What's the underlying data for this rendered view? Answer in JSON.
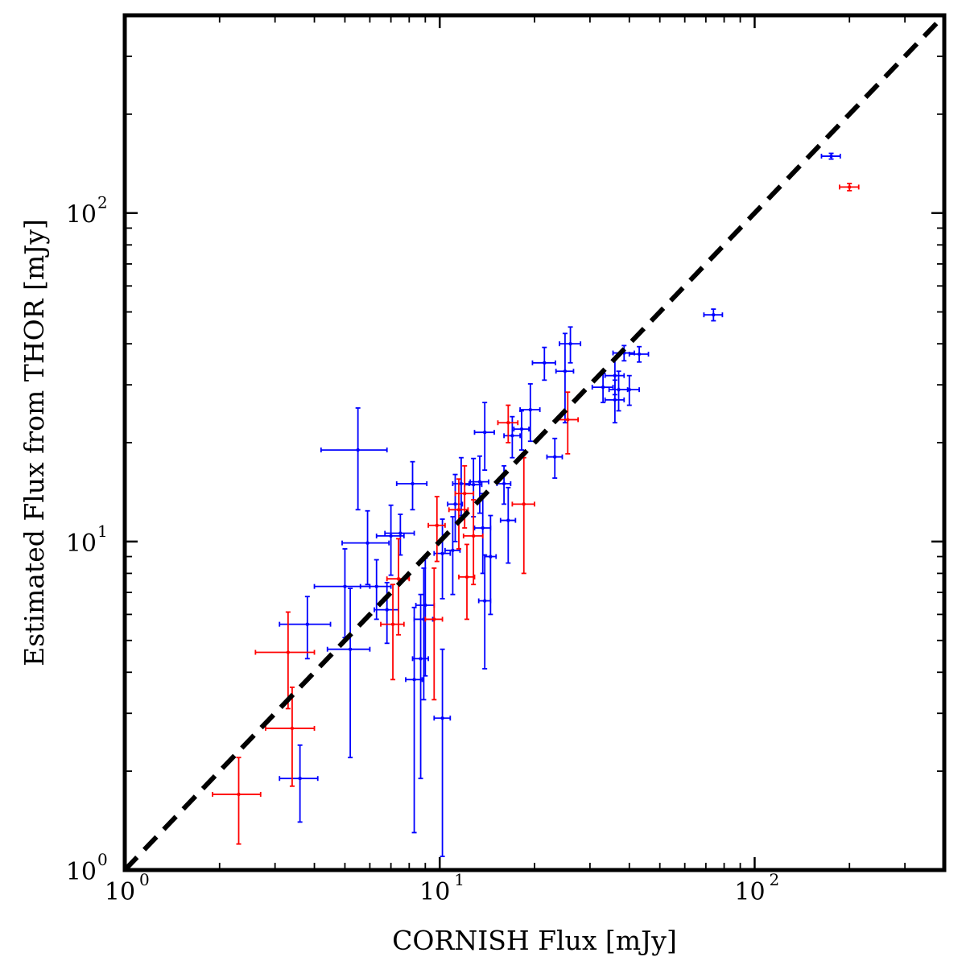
{
  "chart_data": {
    "type": "scatter",
    "title": "",
    "xlabel": "CORNISH Flux [mJy]",
    "ylabel": "Estimated Flux from THOR [mJy]",
    "xscale": "log",
    "yscale": "log",
    "xlim": [
      1,
      400
    ],
    "ylim": [
      1,
      400
    ],
    "x_ticks": [
      {
        "base": "10",
        "exp": "0",
        "value": 1
      },
      {
        "base": "10",
        "exp": "1",
        "value": 10
      },
      {
        "base": "10",
        "exp": "2",
        "value": 100
      }
    ],
    "y_ticks": [
      {
        "base": "10",
        "exp": "0",
        "value": 1
      },
      {
        "base": "10",
        "exp": "1",
        "value": 10
      },
      {
        "base": "10",
        "exp": "2",
        "value": 100
      }
    ],
    "reference_line": {
      "name": "one-to-one",
      "style": "dashed",
      "color": "#000000",
      "from": [
        1,
        1
      ],
      "to": [
        400,
        400
      ]
    },
    "series": [
      {
        "name": "blue",
        "color": "#0000ff",
        "points": [
          [
            5.5,
            19.0,
            1.3,
            6.5
          ],
          [
            8.2,
            15.0,
            0.9,
            2.5
          ],
          [
            3.8,
            5.6,
            0.7,
            1.2
          ],
          [
            3.6,
            1.9,
            0.5,
            0.5
          ],
          [
            5.0,
            7.3,
            1.0,
            2.2
          ],
          [
            5.2,
            4.7,
            0.8,
            2.5
          ],
          [
            5.9,
            9.9,
            1.0,
            2.5
          ],
          [
            6.3,
            7.3,
            0.7,
            1.5
          ],
          [
            7.0,
            10.4,
            0.7,
            2.5
          ],
          [
            6.8,
            6.2,
            0.6,
            1.3
          ],
          [
            7.5,
            10.6,
            0.8,
            1.5
          ],
          [
            8.3,
            3.8,
            0.5,
            2.5
          ],
          [
            8.9,
            5.8,
            0.6,
            2.5
          ],
          [
            8.7,
            4.4,
            0.5,
            2.5
          ],
          [
            9.0,
            6.4,
            0.6,
            2.5
          ],
          [
            10.2,
            2.9,
            0.6,
            1.8
          ],
          [
            10.2,
            9.2,
            0.6,
            2.5
          ],
          [
            11.0,
            9.4,
            0.6,
            2.5
          ],
          [
            11.2,
            13.0,
            0.6,
            3.0
          ],
          [
            11.7,
            15.0,
            0.7,
            3.0
          ],
          [
            12.8,
            14.9,
            0.8,
            3.0
          ],
          [
            13.4,
            15.2,
            0.9,
            3.0
          ],
          [
            13.7,
            11.0,
            0.8,
            3.0
          ],
          [
            13.9,
            6.6,
            0.6,
            2.5
          ],
          [
            13.9,
            21.5,
            1.0,
            5.0
          ],
          [
            14.5,
            9.0,
            0.6,
            3.0
          ],
          [
            16.5,
            11.6,
            0.9,
            3.0
          ],
          [
            17.0,
            21.0,
            1.0,
            3.0
          ],
          [
            18.2,
            22.0,
            1.0,
            3.0
          ],
          [
            19.4,
            25.2,
            1.4,
            5.0
          ],
          [
            23.2,
            18.1,
            1.3,
            2.5
          ],
          [
            21.5,
            35.0,
            1.8,
            4.0
          ],
          [
            25.0,
            33.0,
            1.6,
            10.0
          ],
          [
            26.0,
            40.0,
            2.0,
            5.0
          ],
          [
            33.0,
            29.5,
            2.5,
            3.0
          ],
          [
            36.0,
            32.0,
            2.5,
            4.0
          ],
          [
            37.0,
            29.0,
            2.5,
            4.0
          ],
          [
            38.5,
            37.5,
            3.0,
            2.0
          ],
          [
            40.0,
            29.0,
            3.0,
            3.0
          ],
          [
            43.0,
            37.2,
            3.0,
            2.0
          ],
          [
            74.0,
            49.0,
            5.0,
            2.0
          ],
          [
            175.0,
            149.0,
            12.0,
            3.0
          ],
          [
            36.0,
            27.0,
            2.5,
            4.0
          ],
          [
            16.0,
            15.0,
            0.8,
            2.0
          ]
        ]
      },
      {
        "name": "red",
        "color": "#ff0000",
        "points": [
          [
            2.3,
            1.7,
            0.4,
            0.5
          ],
          [
            3.3,
            4.6,
            0.7,
            1.5
          ],
          [
            3.4,
            2.7,
            0.6,
            0.9
          ],
          [
            7.1,
            5.6,
            0.6,
            1.8
          ],
          [
            7.4,
            7.7,
            0.6,
            2.5
          ],
          [
            9.6,
            5.8,
            0.6,
            2.5
          ],
          [
            9.8,
            11.2,
            0.6,
            2.5
          ],
          [
            11.5,
            12.5,
            0.8,
            3.0
          ],
          [
            12.2,
            7.8,
            0.7,
            2.0
          ],
          [
            12.8,
            10.4,
            0.9,
            3.0
          ],
          [
            16.5,
            23.0,
            1.2,
            3.0
          ],
          [
            18.5,
            13.0,
            1.5,
            5.0
          ],
          [
            25.5,
            23.5,
            2.0,
            5.0
          ],
          [
            200.0,
            120.0,
            14.0,
            3.0
          ],
          [
            12.0,
            14.0,
            0.8,
            3.0
          ]
        ]
      }
    ]
  }
}
